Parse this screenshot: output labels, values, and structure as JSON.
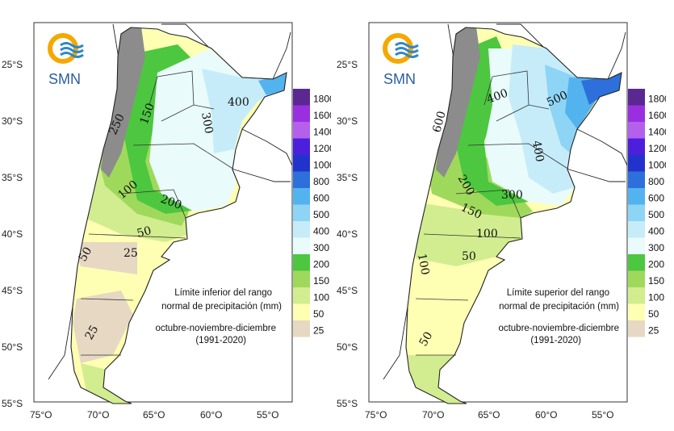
{
  "logo": {
    "text": "SMN"
  },
  "colors": {
    "sea": "#ffffff",
    "land_outside": "#ffffff",
    "mountains": "#8c8c8c",
    "c25": "#e6d8c3",
    "c50": "#ffffb3",
    "c100": "#d2ed8f",
    "c150": "#9fd95c",
    "c200": "#4cc73f",
    "c300": "#e9fbfb",
    "c400": "#c6ecfa",
    "c500": "#8dd4f5",
    "c600": "#53b3ee",
    "c800": "#2d70db",
    "c1000": "#2233cc",
    "c1200": "#4c1fdc",
    "c1400": "#b460ec",
    "c1600": "#9a2fe0",
    "c1800": "#5b2791"
  },
  "legend": {
    "labels": [
      "1800",
      "1600",
      "1400",
      "1200",
      "1000",
      "800",
      "600",
      "500",
      "400",
      "300",
      "200",
      "150",
      "100",
      "50",
      "25"
    ]
  },
  "axes": {
    "lat_labels": [
      "25°S",
      "30°S",
      "35°S",
      "40°S",
      "45°S",
      "50°S",
      "55°S"
    ],
    "lon_labels": [
      "75°O",
      "70°O",
      "65°O",
      "60°O",
      "55°O"
    ]
  },
  "maps": [
    {
      "id": "inferior",
      "note_lines": [
        "Límite inferior del rango",
        "normal de precipitación (mm)"
      ],
      "period_lines": [
        "octubre-noviembre-diciembre",
        "(1991-2020)"
      ],
      "contour_labels": [
        "400",
        "300",
        "250",
        "150",
        "100",
        "200",
        "50",
        "50",
        "25",
        "25"
      ]
    },
    {
      "id": "superior",
      "note_lines": [
        "Límite superior del rango",
        "normal de precipitación (mm)"
      ],
      "period_lines": [
        "octubre-noviembre-diciembre",
        "(1991-2020)"
      ],
      "contour_labels": [
        "400",
        "500",
        "400",
        "600",
        "200",
        "300",
        "150",
        "100",
        "100",
        "50",
        "50"
      ]
    }
  ]
}
